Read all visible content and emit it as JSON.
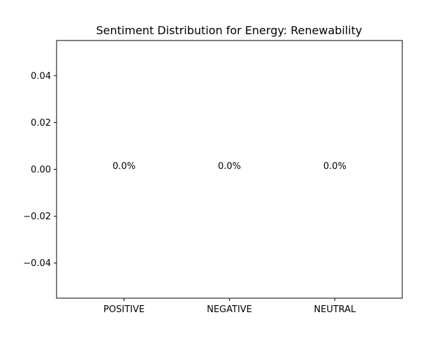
{
  "chart_data": {
    "type": "bar",
    "title": "Sentiment Distribution for Energy: Renewability",
    "xlabel": "",
    "ylabel": "",
    "categories": [
      "POSITIVE",
      "NEGATIVE",
      "NEUTRAL"
    ],
    "values": [
      0.0,
      0.0,
      0.0
    ],
    "data_labels": [
      "0.0%",
      "0.0%",
      "0.0%"
    ],
    "ylim": [
      -0.055,
      0.055
    ],
    "yticks": [
      -0.04,
      -0.02,
      0.0,
      0.02,
      0.04
    ],
    "ytick_labels": [
      "−0.04",
      "−0.02",
      "0.00",
      "0.02",
      "0.04"
    ],
    "grid": false,
    "legend": "none"
  }
}
